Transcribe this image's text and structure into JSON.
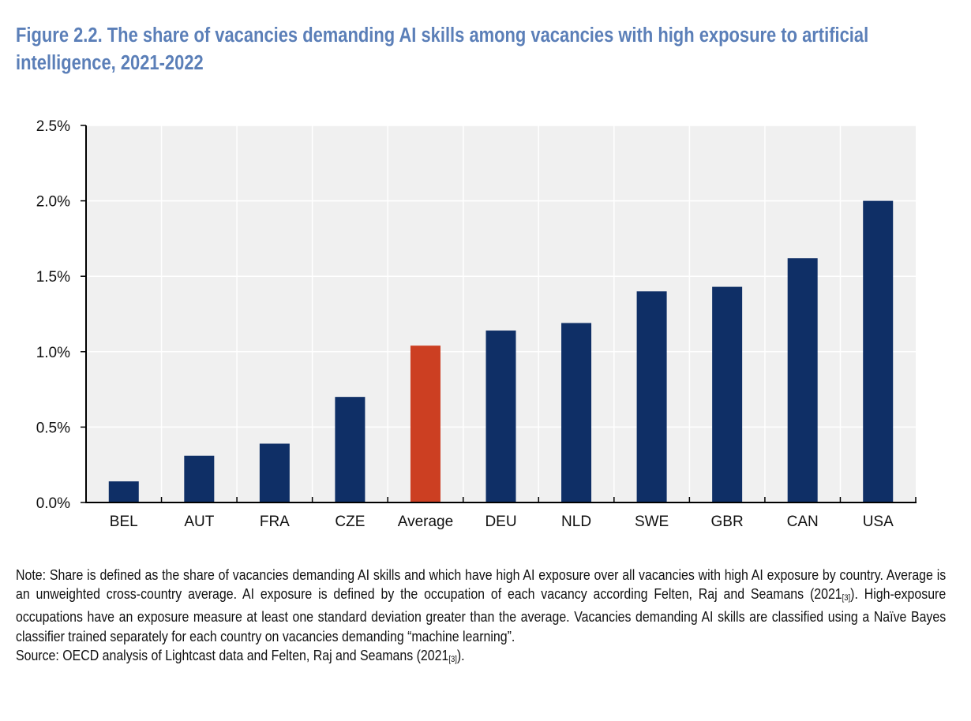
{
  "figure": {
    "title": "Figure 2.2. The share of vacancies demanding AI skills among vacancies with high exposure to artificial intelligence, 2021-2022",
    "note_text": "Note: Share is defined as the share of vacancies demanding AI skills and which have high AI exposure over all vacancies with high AI exposure by country. Average is an unweighted cross-country average. AI exposure is defined by the occupation of each vacancy according Felten, Raj and Seamans (2021",
    "note_ref": "[3]",
    "note_tail": "). High-exposure occupations have an exposure measure at least one standard deviation greater than the average. Vacancies demanding AI skills are classified using a Naïve Bayes classifier trained separately for each country on vacancies demanding “machine learning”.",
    "source_text": "Source: OECD analysis of Lightcast data and Felten, Raj and Seamans (2021",
    "source_ref": "[3]",
    "source_tail": ")."
  },
  "colors": {
    "bar": "#0f2f66",
    "highlight_bar": "#cc3f22",
    "plot_bg": "#f0f0f0",
    "grid": "#ffffff",
    "axis": "#000000",
    "title": "#5b7fb8"
  },
  "chart_data": {
    "type": "bar",
    "title": "The share of vacancies demanding AI skills among vacancies with high exposure to artificial intelligence, 2021-2022",
    "xlabel": "",
    "ylabel": "",
    "categories": [
      "BEL",
      "AUT",
      "FRA",
      "CZE",
      "Average",
      "DEU",
      "NLD",
      "SWE",
      "GBR",
      "CAN",
      "USA"
    ],
    "values": [
      0.14,
      0.31,
      0.39,
      0.7,
      1.04,
      1.14,
      1.19,
      1.4,
      1.43,
      1.62,
      2.0
    ],
    "highlight": [
      "Average"
    ],
    "unit": "%",
    "ylim": [
      0,
      2.5
    ],
    "yticks": [
      0.0,
      0.5,
      1.0,
      1.5,
      2.0,
      2.5
    ],
    "ytick_labels": [
      "0.0%",
      "0.5%",
      "1.0%",
      "1.5%",
      "2.0%",
      "2.5%"
    ],
    "grid": true,
    "legend": "none"
  }
}
